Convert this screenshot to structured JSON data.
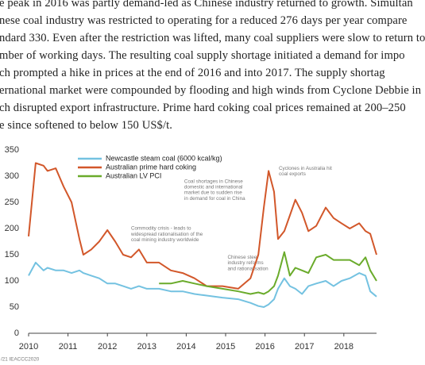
{
  "body_text": [
    "e peak in 2016 was partly demand-led as Chinese industry returned to growth. Simultan",
    "nese coal industry was restricted to operating for a reduced 276 days per year compare",
    "ndard 330. Even after the restriction was lifted, many coal suppliers were slow to return to",
    "mber of working days. The resulting coal supply shortage initiated a demand for impo",
    "ch prompted a hike in prices at the end of 2016 and into 2017. The supply shortag",
    "ernational market were compounded by flooding and high winds from Cyclone Debbie in",
    "ch disrupted export infrastructure. Prime hard coking coal prices remained at 200–250",
    "e since softened to below 150 US$/t."
  ],
  "chart_data": {
    "type": "line",
    "x": [
      2010.0,
      2010.18,
      2010.38,
      2010.48,
      2010.69,
      2010.89,
      2011.09,
      2011.29,
      2011.39,
      2011.59,
      2011.79,
      2012.0,
      2012.2,
      2012.4,
      2012.6,
      2012.8,
      2013.0,
      2013.31,
      2013.61,
      2013.91,
      2014.21,
      2014.52,
      2014.92,
      2015.32,
      2015.63,
      2015.83,
      2015.97,
      2016.09,
      2016.23,
      2016.33,
      2016.49,
      2016.63,
      2016.77,
      2016.94,
      2017.1,
      2017.3,
      2017.54,
      2017.74,
      2017.94,
      2018.15,
      2018.39,
      2018.55,
      2018.67,
      2018.83
    ],
    "series": [
      {
        "name": "Newcastle steam coal (6000 kcal/kg)",
        "color": "#74c2e1",
        "values": [
          110,
          135,
          120,
          125,
          120,
          120,
          115,
          120,
          115,
          110,
          105,
          95,
          95,
          90,
          85,
          90,
          85,
          85,
          80,
          80,
          75,
          72,
          68,
          65,
          58,
          52,
          50,
          55,
          65,
          85,
          105,
          90,
          85,
          75,
          90,
          95,
          100,
          90,
          100,
          105,
          115,
          110,
          80,
          70
        ]
      },
      {
        "name": "Australian prime hard coking",
        "color": "#d2572a",
        "values": [
          185,
          325,
          320,
          310,
          315,
          280,
          250,
          180,
          150,
          160,
          175,
          197,
          175,
          150,
          145,
          160,
          135,
          135,
          120,
          115,
          105,
          90,
          90,
          85,
          105,
          150,
          240,
          310,
          270,
          180,
          195,
          225,
          255,
          230,
          195,
          205,
          240,
          220,
          210,
          200,
          210,
          195,
          190,
          150
        ]
      },
      {
        "name": "Australian LV PCI",
        "color": "#6aab2b",
        "values": [
          null,
          null,
          null,
          null,
          null,
          null,
          null,
          null,
          null,
          null,
          null,
          null,
          null,
          null,
          null,
          null,
          null,
          95,
          95,
          100,
          95,
          90,
          85,
          80,
          75,
          78,
          75,
          80,
          90,
          110,
          155,
          110,
          125,
          120,
          115,
          145,
          150,
          140,
          140,
          140,
          130,
          145,
          120,
          100
        ]
      }
    ],
    "xlim": [
      2010,
      2018.83
    ],
    "xticks": [
      2010,
      2011,
      2012,
      2013,
      2014,
      2015,
      2016,
      2017,
      2018
    ],
    "ylim": [
      0,
      350
    ],
    "yticks": [
      0,
      50,
      100,
      150,
      200,
      250,
      300,
      350
    ],
    "grid": false,
    "annotations": [
      {
        "lines": [
          "Commodity crisis - leads to",
          "widespread rationalisation of the",
          "coal mining industry worldwide"
        ],
        "x": 2012.6,
        "y": 200
      },
      {
        "lines": [
          "Coal shortages in Chinese",
          "domestic and international",
          "market due to sudden rise",
          "in demand for coal in China"
        ],
        "x": 2013.95,
        "y": 290
      },
      {
        "lines": [
          "Cyclones in Australia hit",
          "coal exports"
        ],
        "x": 2016.35,
        "y": 315
      },
      {
        "lines": [
          "Chinese steel",
          "industry reforms",
          "and rationalisation"
        ],
        "x": 2015.05,
        "y": 145
      }
    ],
    "source": "/21 IEACCC2020"
  }
}
